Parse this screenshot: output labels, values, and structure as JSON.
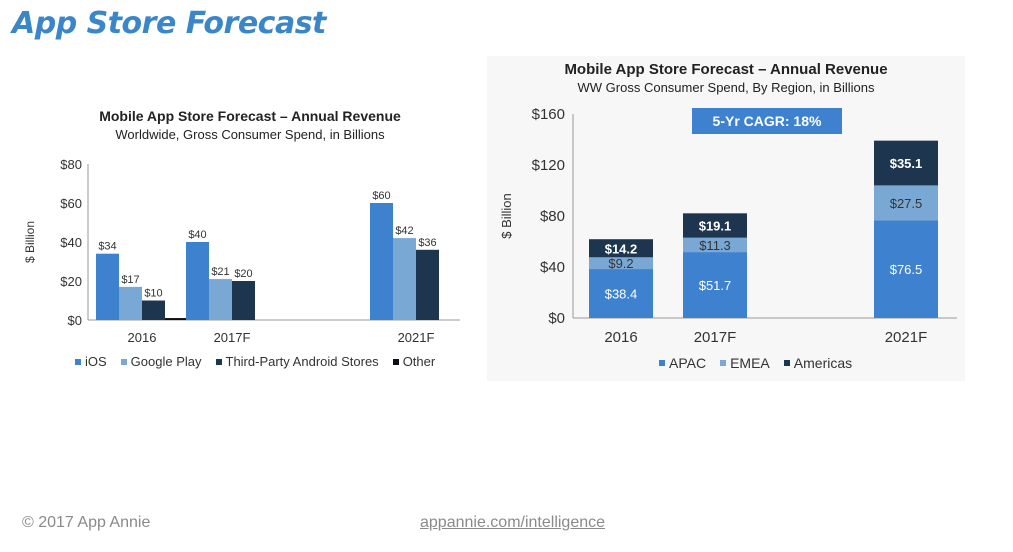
{
  "page": {
    "title": "App Store Forecast",
    "footer_left": "© 2017 App Annie",
    "footer_right": "appannie.com/intelligence"
  },
  "colors": {
    "ios": "#3e82cf",
    "google_play": "#7aa8d4",
    "third_party": "#1e3550",
    "other": "#0d1015",
    "apac": "#3e82cf",
    "emea": "#7aa8d4",
    "americas": "#1e3550",
    "cagr_box": "#3e82cf",
    "title": "#3a86c8"
  },
  "chart_data": [
    {
      "type": "bar",
      "title": "Mobile App Store Forecast – Annual Revenue",
      "subtitle": "Worldwide, Gross Consumer Spend, in Billions",
      "ylabel": "$ Billion",
      "xlabel": "",
      "ylim": [
        0,
        80
      ],
      "yticks": [
        0,
        20,
        40,
        60,
        80
      ],
      "ytick_labels": [
        "$0",
        "$20",
        "$40",
        "$60",
        "$80"
      ],
      "categories": [
        "2016",
        "2017F",
        "2021F"
      ],
      "series": [
        {
          "name": "iOS",
          "values": [
            34,
            40,
            60
          ],
          "labels": [
            "$34",
            "$40",
            "$60"
          ]
        },
        {
          "name": "Google Play",
          "values": [
            17,
            21,
            42
          ],
          "labels": [
            "$17",
            "$21",
            "$42"
          ]
        },
        {
          "name": "Third-Party Android Stores",
          "values": [
            10,
            20,
            36
          ],
          "labels": [
            "$10",
            "$20",
            "$36"
          ]
        },
        {
          "name": "Other",
          "values": [
            1,
            null,
            null
          ],
          "labels": [
            "",
            "",
            ""
          ]
        }
      ],
      "legend_position": "bottom",
      "grid": false
    },
    {
      "type": "bar",
      "stacked": true,
      "title": "Mobile App Store Forecast – Annual Revenue",
      "subtitle": "WW Gross Consumer Spend, By Region, in Billions",
      "ylabel": "$ Billion",
      "xlabel": "",
      "ylim": [
        0,
        160
      ],
      "yticks": [
        0,
        40,
        80,
        120,
        160
      ],
      "ytick_labels": [
        "$0",
        "$40",
        "$80",
        "$120",
        "$160"
      ],
      "categories": [
        "2016",
        "2017F",
        "2021F"
      ],
      "series": [
        {
          "name": "APAC",
          "values": [
            38.4,
            51.7,
            76.5
          ],
          "labels": [
            "$38.4",
            "$51.7",
            "$76.5"
          ]
        },
        {
          "name": "EMEA",
          "values": [
            9.2,
            11.3,
            27.5
          ],
          "labels": [
            "$9.2",
            "$11.3",
            "$27.5"
          ]
        },
        {
          "name": "Americas",
          "values": [
            14.2,
            19.1,
            35.1
          ],
          "labels": [
            "$14.2",
            "$19.1",
            "$35.1"
          ]
        }
      ],
      "annotation": "5-Yr CAGR: 18%",
      "legend_position": "bottom",
      "grid": false
    }
  ]
}
